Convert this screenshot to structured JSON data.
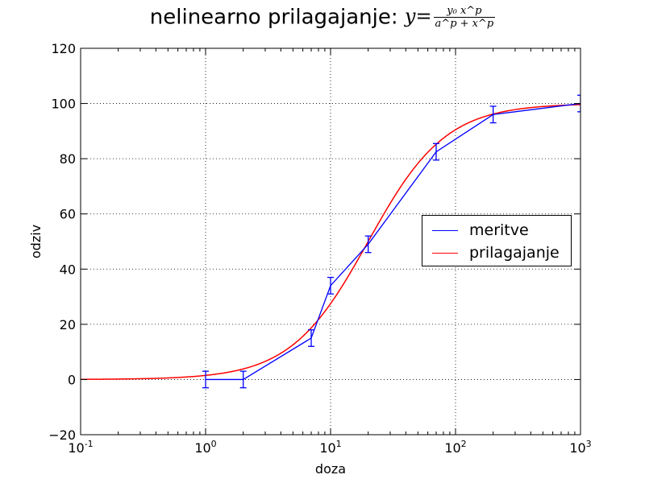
{
  "chart_data": {
    "type": "line",
    "title_text": "nelinearno prilagajanje:",
    "title_formula": {
      "lhs": "y",
      "eq": "=",
      "numerator": "y₀ x^p",
      "denominator": "a^p + x^p"
    },
    "xlabel": "doza",
    "ylabel": "odziv",
    "x_scale": "log",
    "xlim": [
      0.1,
      1000
    ],
    "ylim": [
      -20,
      120
    ],
    "x_ticks": [
      {
        "value": 0.1,
        "base": "10",
        "exp": "-1"
      },
      {
        "value": 1,
        "base": "10",
        "exp": "0"
      },
      {
        "value": 10,
        "base": "10",
        "exp": "1"
      },
      {
        "value": 100,
        "base": "10",
        "exp": "2"
      },
      {
        "value": 1000,
        "base": "10",
        "exp": "3"
      }
    ],
    "y_ticks": [
      {
        "value": -20,
        "label": "−20"
      },
      {
        "value": 0,
        "label": "0"
      },
      {
        "value": 20,
        "label": "20"
      },
      {
        "value": 40,
        "label": "40"
      },
      {
        "value": 60,
        "label": "60"
      },
      {
        "value": 80,
        "label": "80"
      },
      {
        "value": 100,
        "label": "100"
      },
      {
        "value": 120,
        "label": "120"
      }
    ],
    "grid": true,
    "legend_position": "center-right",
    "series": [
      {
        "name": "meritve",
        "color": "#0000ff",
        "kind": "errorbar-line",
        "x": [
          1,
          2,
          7,
          10,
          20,
          70,
          200,
          1000
        ],
        "y": [
          0,
          0,
          15,
          34,
          49,
          82.5,
          96,
          100
        ],
        "yerr": [
          3,
          3,
          3,
          3,
          3,
          3,
          3,
          3
        ]
      },
      {
        "name": "prilagajanje",
        "color": "#ff0000",
        "kind": "curve",
        "model": {
          "y0": 100,
          "a": 20,
          "p": 1.4
        }
      }
    ]
  }
}
